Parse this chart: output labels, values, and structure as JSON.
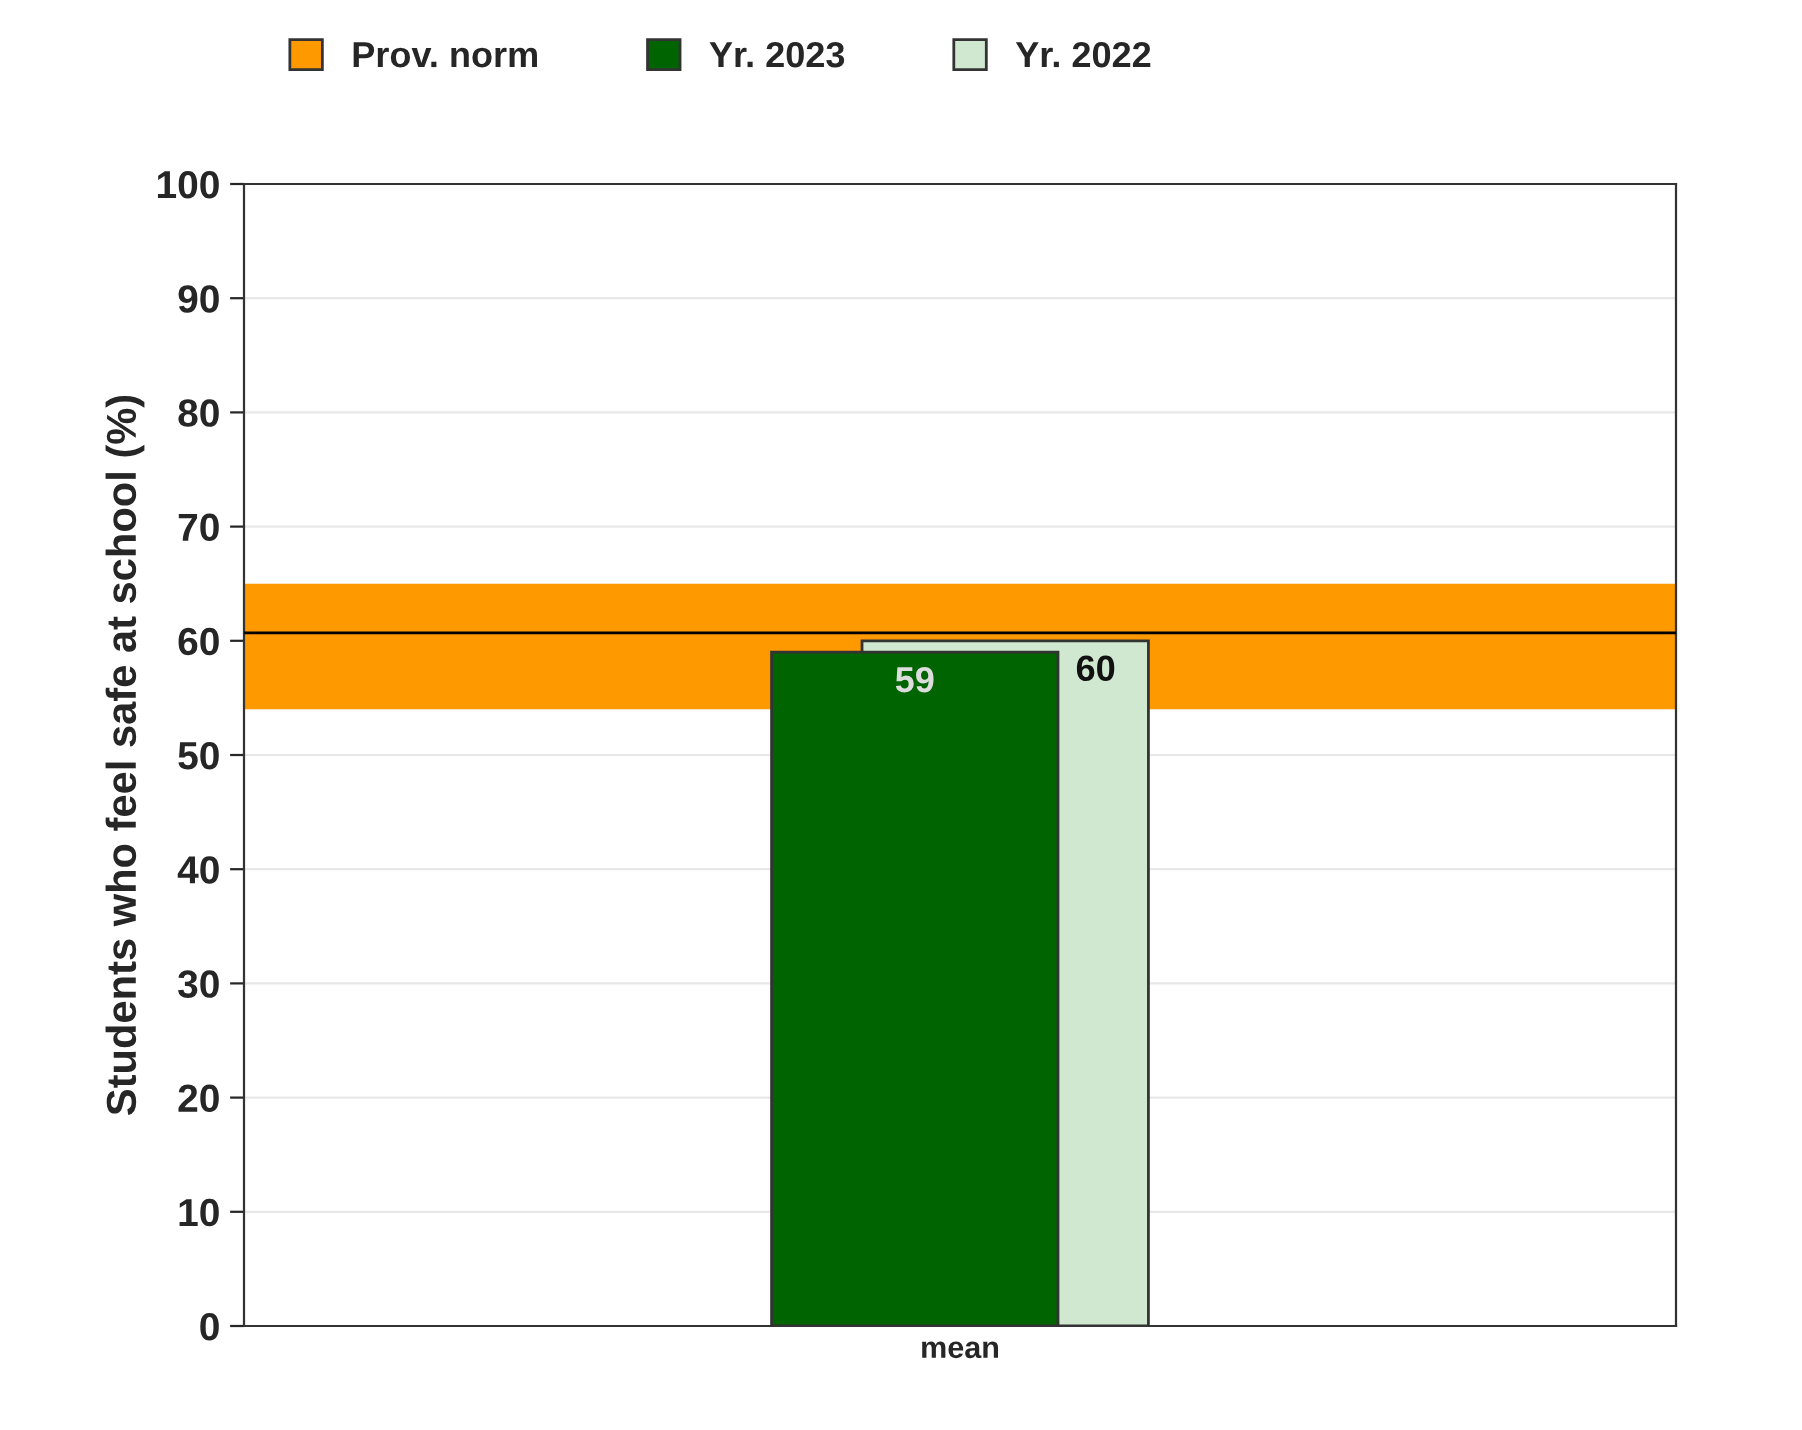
{
  "chart_data": {
    "type": "bar",
    "ylabel": "Students who feel safe at school (%)",
    "categories": [
      "mean"
    ],
    "series": [
      {
        "name": "Yr. 2023",
        "color": "#006400",
        "values": [
          59
        ]
      },
      {
        "name": "Yr. 2022",
        "color": "#d0e8d0",
        "values": [
          60
        ]
      }
    ],
    "bands": [
      {
        "axis": "y",
        "from": 54,
        "to": 65,
        "label": "Prov. norm",
        "color": "#ff9900"
      }
    ],
    "ref_lines": [
      {
        "axis": "y",
        "value": 60.7,
        "color": "#000000"
      }
    ],
    "ylim": [
      0,
      100
    ],
    "yticks": [
      0,
      10,
      20,
      30,
      40,
      50,
      60,
      70,
      80,
      90,
      100
    ],
    "grid": "y",
    "legend": "top",
    "data_labels": true
  }
}
